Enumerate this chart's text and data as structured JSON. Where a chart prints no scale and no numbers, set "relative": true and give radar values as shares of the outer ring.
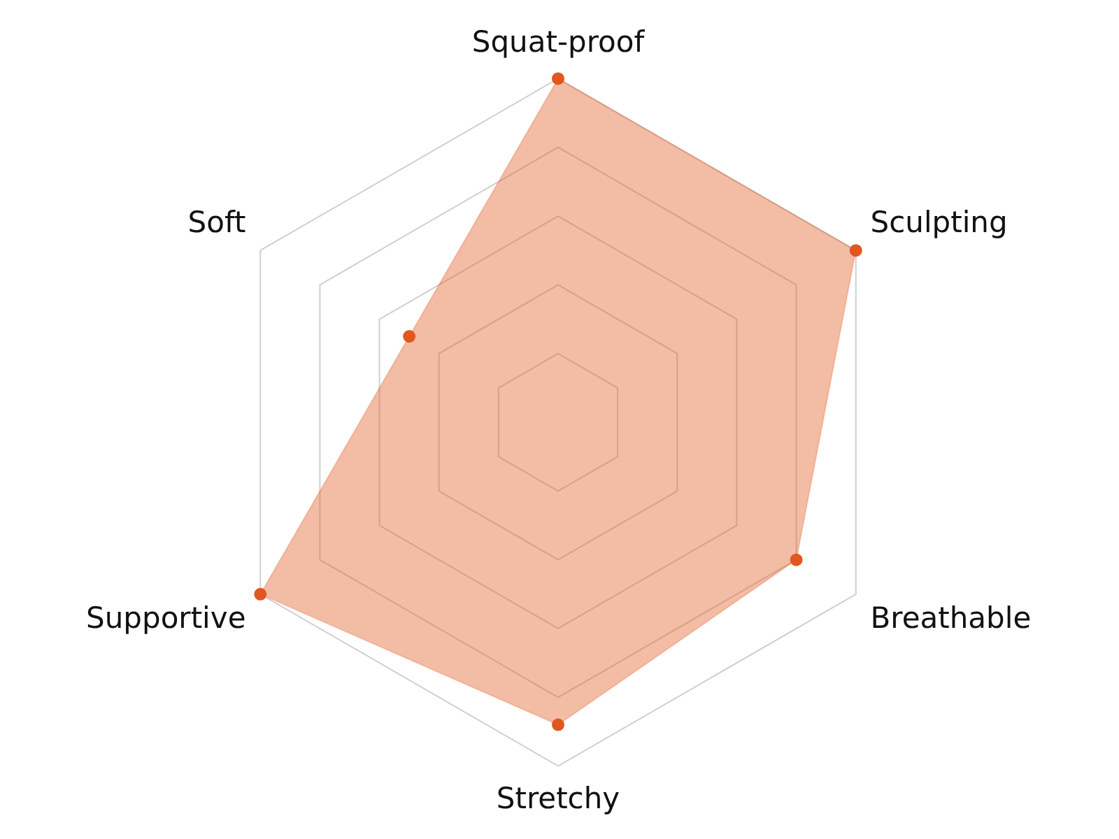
{
  "chart_data": {
    "type": "radar",
    "relative": true,
    "categories": [
      "Squat-proof",
      "Sculpting",
      "Breathable",
      "Stretchy",
      "Supportive",
      "Soft"
    ],
    "series": [
      {
        "color": "#e0581f",
        "values": [
          1,
          1,
          0.8,
          0.88,
          1,
          0.5
        ]
      }
    ],
    "grid": true,
    "legend": false,
    "marker": "circle"
  }
}
